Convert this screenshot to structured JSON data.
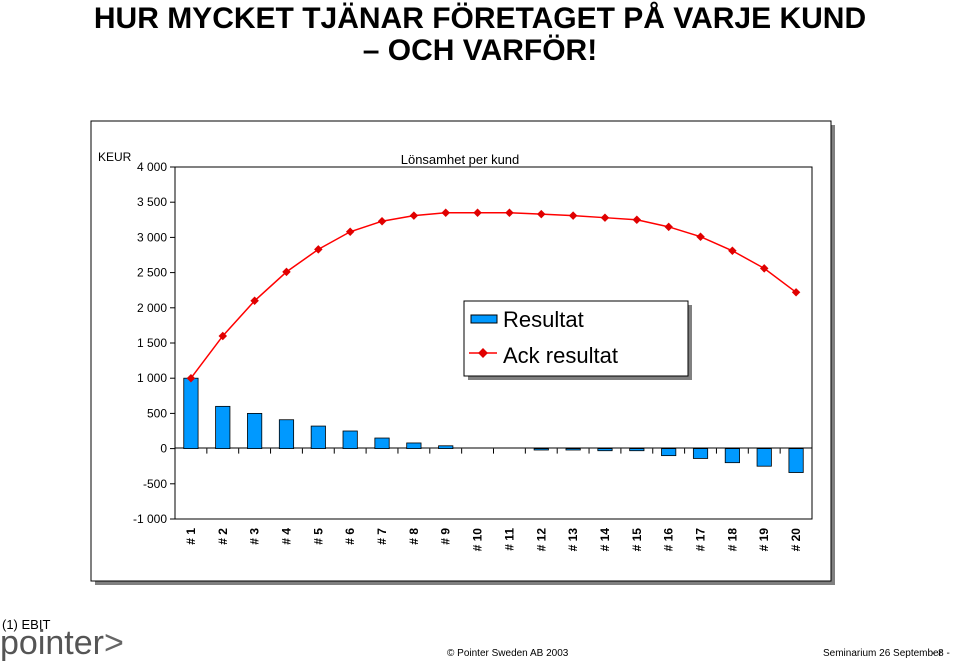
{
  "header": {
    "title_line1": "HUR MYCKET TJÄNAR FÖRETAGET PÅ VARJE KUND",
    "title_line2": "– OCH VARFÖR!"
  },
  "footer": {
    "footnote": "(1) EBIT",
    "logo_text": "pointer",
    "logo_mark": ">",
    "copyright": "© Pointer Sweden AB 2003",
    "seminar": "Seminarium 26 September",
    "page": "- 8 -"
  },
  "colors": {
    "bar_fill": "#0099ff",
    "line": "#ff0000",
    "marker": "#e00000"
  },
  "chart_data": {
    "type": "bar",
    "title": "Lönsamhet per kund",
    "ylabel": "KEUR",
    "xlabel": "",
    "ylim": [
      -1000,
      4000
    ],
    "yticks": [
      -1000,
      -500,
      0,
      500,
      1000,
      1500,
      2000,
      2500,
      3000,
      3500,
      4000
    ],
    "ytick_labels": [
      "-1 000",
      "-500",
      "0",
      "500",
      "1 000",
      "1 500",
      "2 000",
      "2 500",
      "3 000",
      "3 500",
      "4 000"
    ],
    "categories": [
      "# 1",
      "# 2",
      "# 3",
      "# 4",
      "# 5",
      "# 6",
      "# 7",
      "# 8",
      "# 9",
      "# 10",
      "# 11",
      "# 12",
      "# 13",
      "# 14",
      "# 15",
      "# 16",
      "# 17",
      "# 18",
      "# 19",
      "# 20"
    ],
    "legend_position": "center-right",
    "series": [
      {
        "name": "Resultat",
        "kind": "bar",
        "values": [
          1000,
          600,
          500,
          410,
          320,
          250,
          150,
          80,
          40,
          0,
          0,
          -20,
          -20,
          -30,
          -30,
          -100,
          -140,
          -200,
          -250,
          -340
        ]
      },
      {
        "name": "Ack resultat",
        "kind": "line",
        "values": [
          1000,
          1600,
          2100,
          2510,
          2830,
          3080,
          3230,
          3310,
          3350,
          3350,
          3350,
          3330,
          3310,
          3280,
          3250,
          3150,
          3010,
          2810,
          2560,
          2220
        ]
      }
    ]
  }
}
